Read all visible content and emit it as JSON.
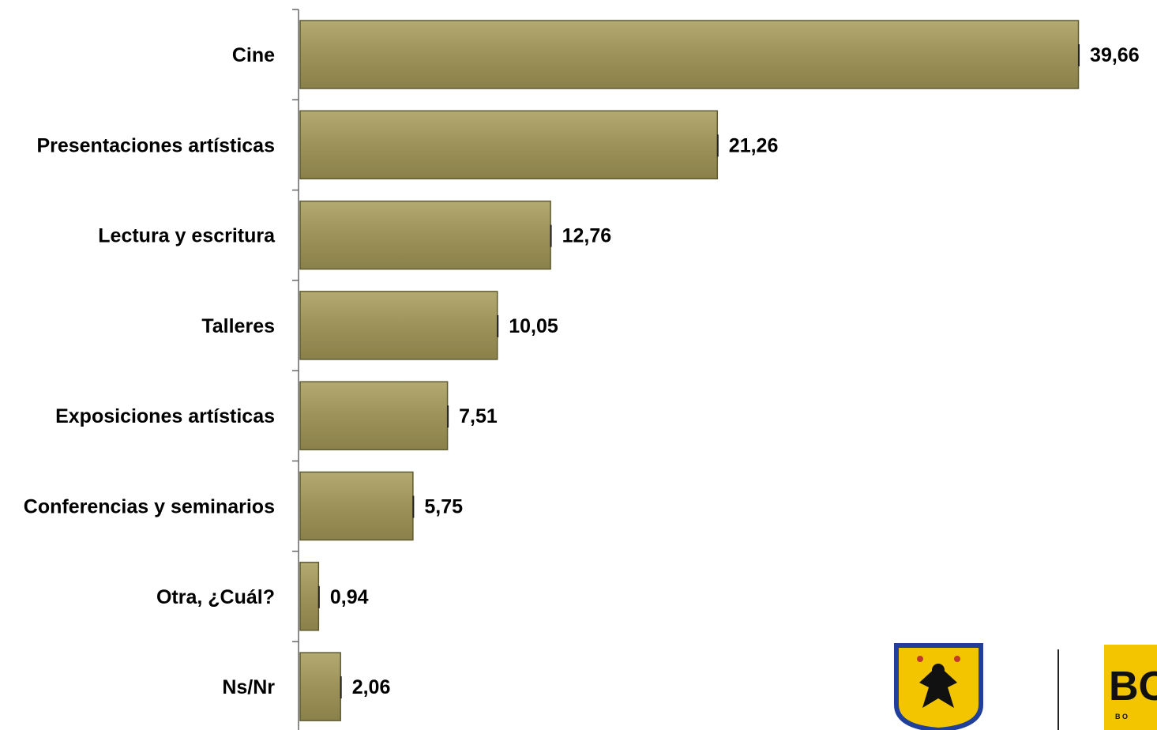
{
  "chart_data": {
    "type": "bar",
    "orientation": "horizontal",
    "categories": [
      "Cine",
      "Presentaciones  artísticas",
      "Lectura y escritura",
      "Talleres",
      "Exposiciones artísticas",
      "Conferencias y seminarios",
      "Otra, ¿Cuál?",
      "Ns/Nr"
    ],
    "values": [
      39.66,
      21.26,
      12.76,
      10.05,
      7.51,
      5.75,
      0.94,
      2.06
    ],
    "value_labels": [
      "39,66",
      "21,26",
      "12,76",
      "10,05",
      "7,51",
      "5,75",
      "0,94",
      "2,06"
    ],
    "xlim": [
      0,
      40
    ],
    "grid": false,
    "legend": "none",
    "bar_color": "#9c925a",
    "bar_edge_color": "#5f5a30"
  },
  "logos": {
    "coat_of_arms_icon": "coat-of-arms-icon",
    "bogota_logo_icon": "bogota-logo-icon",
    "bogota_logo_text": "BO",
    "bogota_logo_subtext": "B O",
    "crest_color": "#1f3f9a",
    "gold_color": "#f2c500"
  }
}
